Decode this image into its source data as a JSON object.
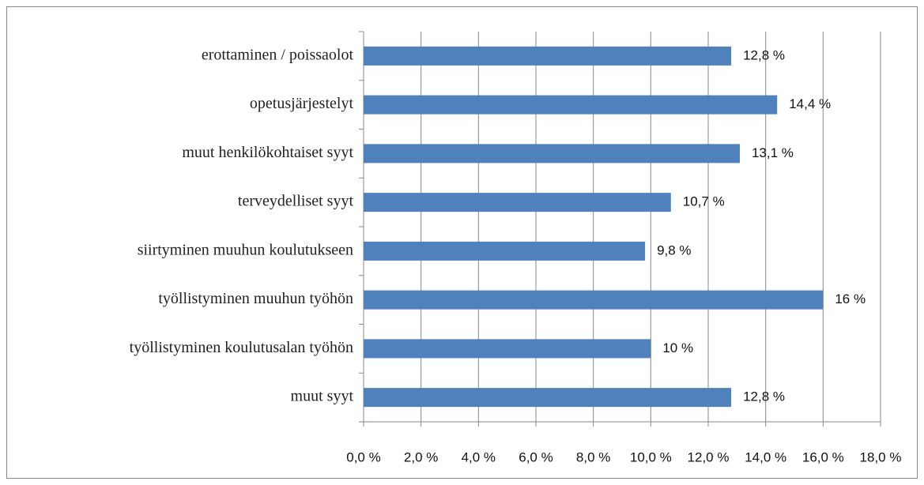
{
  "chart_data": {
    "type": "bar",
    "orientation": "horizontal",
    "categories": [
      "erottaminen / poissaolot",
      "opetusjärjestelyt",
      "muut henkilökohtaiset syyt",
      "terveydelliset syyt",
      "siirtyminen muuhun koulutukseen",
      "työllistyminen muuhun työhön",
      "työllistyminen koulutusalan työhön",
      "muut syyt"
    ],
    "values": [
      12.8,
      14.4,
      13.1,
      10.7,
      9.8,
      16,
      10,
      12.8
    ],
    "value_labels": [
      "12,8 %",
      "14,4 %",
      "13,1 %",
      "10,7 %",
      "9,8 %",
      "16 %",
      "10 %",
      "12,8 %"
    ],
    "color": "#4f81bd",
    "xlim": [
      0,
      18
    ],
    "xticks": [
      {
        "value": 0,
        "label": "0,0 %"
      },
      {
        "value": 2,
        "label": "2,0 %"
      },
      {
        "value": 4,
        "label": "4,0 %"
      },
      {
        "value": 6,
        "label": "6,0 %"
      },
      {
        "value": 8,
        "label": "8,0 %"
      },
      {
        "value": 10,
        "label": "10,0 %"
      },
      {
        "value": 12,
        "label": "12,0 %"
      },
      {
        "value": 14,
        "label": "14,0 %"
      },
      {
        "value": 16,
        "label": "16,0 %"
      },
      {
        "value": 18,
        "label": "18,0 %"
      }
    ],
    "grid": true
  }
}
